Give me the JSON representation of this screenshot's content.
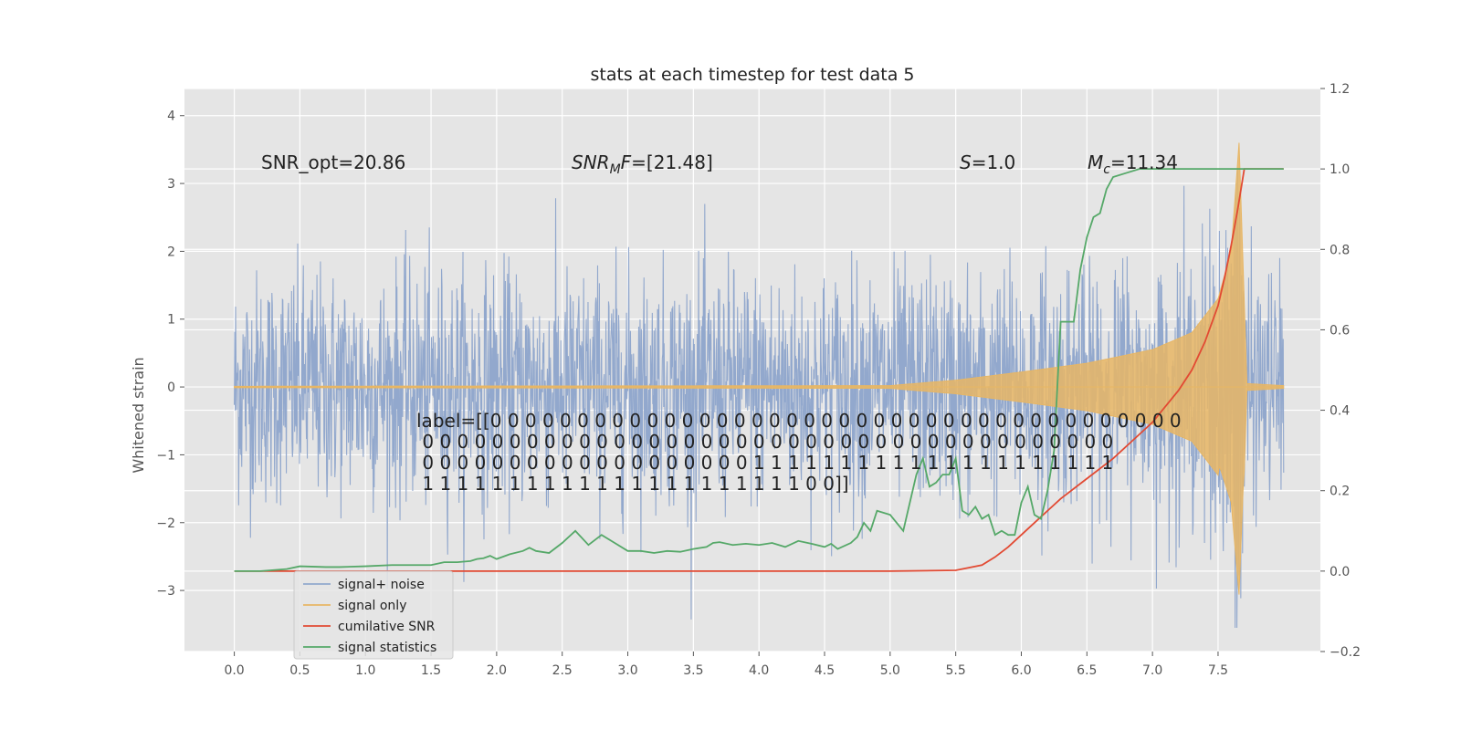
{
  "chart_data": {
    "type": "line",
    "title": "stats at each timestep for test data 5",
    "xlabel": "",
    "ylabel": "Whitened strain",
    "xlim": [
      -0.38,
      8.28
    ],
    "ylim": [
      -3.9,
      4.4
    ],
    "y2lim": [
      -0.2,
      1.2
    ],
    "x_ticks": [
      "0.0",
      "0.5",
      "1.0",
      "1.5",
      "2.0",
      "2.5",
      "3.0",
      "3.5",
      "4.0",
      "4.5",
      "5.0",
      "5.5",
      "6.0",
      "6.5",
      "7.0",
      "7.5"
    ],
    "y_ticks": [
      "4",
      "3",
      "2",
      "1",
      "0",
      "−1",
      "−2",
      "−3"
    ],
    "y2_ticks": [
      "1.2",
      "1.0",
      "0.8",
      "0.6",
      "0.4",
      "0.2",
      "0.0",
      "−0.2"
    ],
    "grid": true,
    "legend_position": "lower-left",
    "annotations": {
      "snr_opt": "SNR_opt=20.86",
      "snr_mf": "SNR_MF=[21.48]",
      "s_value": "S=1.0",
      "mc_value": "M_c=11.34"
    },
    "label_lines": [
      "label=[[0 0 0 0 0 0 0 0 0 0 0 0 0 0 0 0 0 0 0 0 0 0 0 0 0 0 0 0 0 0 0 0 0 0 0 0 0 0 0 0",
      " 0 0 0 0 0 0 0 0 0 0 0 0 0 0 0 0 0 0 0 0 0 0 0 0 0 0 0 0 0 0 0 0 0 0 0 0 0 0 0 0",
      " 0 0 0 0 0 0 0 0 0 0 0 0 0 0 0 0 0 0 0 1 1 1 1 1 1 1 1 1 1 1 1 1 1 1 1 1 1 1 1 1",
      " 1 1 1 1 1 1 1 1 1 1 1 1 1 1 1 1 1 1 1 1 1 1 0 0]]"
    ],
    "series": [
      {
        "name": "signal+ noise",
        "color": "#92a8cd",
        "axis": "left",
        "noise_sigma": 0.85,
        "x_range": [
          0.0,
          8.0
        ]
      },
      {
        "name": "signal only",
        "color": "#e7b665",
        "axis": "left",
        "envelope": {
          "x": [
            0.0,
            5.0,
            5.5,
            6.0,
            6.5,
            7.0,
            7.3,
            7.5,
            7.6,
            7.66,
            7.72,
            8.0
          ],
          "y": [
            0.01,
            0.02,
            0.1,
            0.22,
            0.35,
            0.55,
            0.8,
            1.3,
            2.0,
            3.6,
            0.05,
            0.02
          ]
        }
      },
      {
        "name": "cumilative SNR",
        "color": "#e24a33",
        "axis": "right",
        "x": [
          0.0,
          5.0,
          5.5,
          5.7,
          5.8,
          5.9,
          6.0,
          6.1,
          6.2,
          6.3,
          6.5,
          6.7,
          6.9,
          7.0,
          7.1,
          7.2,
          7.3,
          7.4,
          7.5,
          7.55,
          7.6,
          7.65,
          7.7,
          8.0
        ],
        "y": [
          0.0,
          0.0,
          0.002,
          0.015,
          0.035,
          0.06,
          0.09,
          0.12,
          0.15,
          0.18,
          0.23,
          0.28,
          0.34,
          0.37,
          0.41,
          0.45,
          0.5,
          0.57,
          0.66,
          0.73,
          0.81,
          0.9,
          1.0,
          1.0
        ]
      },
      {
        "name": "signal statistics",
        "color": "#348abd",
        "display_color": "#55a868",
        "axis": "right",
        "x": [
          0.0,
          0.2,
          0.4,
          0.5,
          0.7,
          0.8,
          1.0,
          1.2,
          1.4,
          1.5,
          1.6,
          1.7,
          1.8,
          1.85,
          1.9,
          1.95,
          2.0,
          2.1,
          2.2,
          2.25,
          2.3,
          2.4,
          2.5,
          2.55,
          2.6,
          2.7,
          2.8,
          2.9,
          3.0,
          3.1,
          3.2,
          3.3,
          3.4,
          3.5,
          3.6,
          3.65,
          3.7,
          3.8,
          3.9,
          4.0,
          4.1,
          4.2,
          4.3,
          4.4,
          4.5,
          4.55,
          4.6,
          4.7,
          4.75,
          4.8,
          4.85,
          4.9,
          5.0,
          5.1,
          5.15,
          5.2,
          5.25,
          5.3,
          5.35,
          5.4,
          5.45,
          5.5,
          5.55,
          5.6,
          5.65,
          5.7,
          5.75,
          5.8,
          5.85,
          5.9,
          5.95,
          6.0,
          6.05,
          6.1,
          6.15,
          6.2,
          6.25,
          6.3,
          6.35,
          6.4,
          6.45,
          6.5,
          6.55,
          6.6,
          6.65,
          6.7,
          6.8,
          6.9,
          7.0,
          7.1,
          7.2,
          7.3,
          7.4,
          7.5,
          7.6,
          7.7,
          8.0
        ],
        "y": [
          0.0,
          0.0,
          0.005,
          0.012,
          0.01,
          0.01,
          0.012,
          0.015,
          0.015,
          0.015,
          0.022,
          0.022,
          0.025,
          0.03,
          0.032,
          0.038,
          0.03,
          0.042,
          0.05,
          0.058,
          0.05,
          0.045,
          0.07,
          0.085,
          0.1,
          0.065,
          0.09,
          0.07,
          0.05,
          0.05,
          0.045,
          0.05,
          0.048,
          0.055,
          0.06,
          0.07,
          0.072,
          0.065,
          0.068,
          0.065,
          0.07,
          0.06,
          0.075,
          0.068,
          0.06,
          0.068,
          0.055,
          0.07,
          0.085,
          0.12,
          0.1,
          0.15,
          0.14,
          0.1,
          0.17,
          0.24,
          0.28,
          0.21,
          0.22,
          0.24,
          0.24,
          0.28,
          0.15,
          0.14,
          0.16,
          0.13,
          0.14,
          0.09,
          0.1,
          0.09,
          0.09,
          0.17,
          0.21,
          0.14,
          0.13,
          0.2,
          0.3,
          0.62,
          0.62,
          0.62,
          0.75,
          0.83,
          0.88,
          0.89,
          0.95,
          0.98,
          0.99,
          1.0,
          1.0,
          1.0,
          1.0,
          1.0,
          1.0,
          1.0,
          1.0,
          1.0,
          1.0
        ]
      }
    ]
  }
}
